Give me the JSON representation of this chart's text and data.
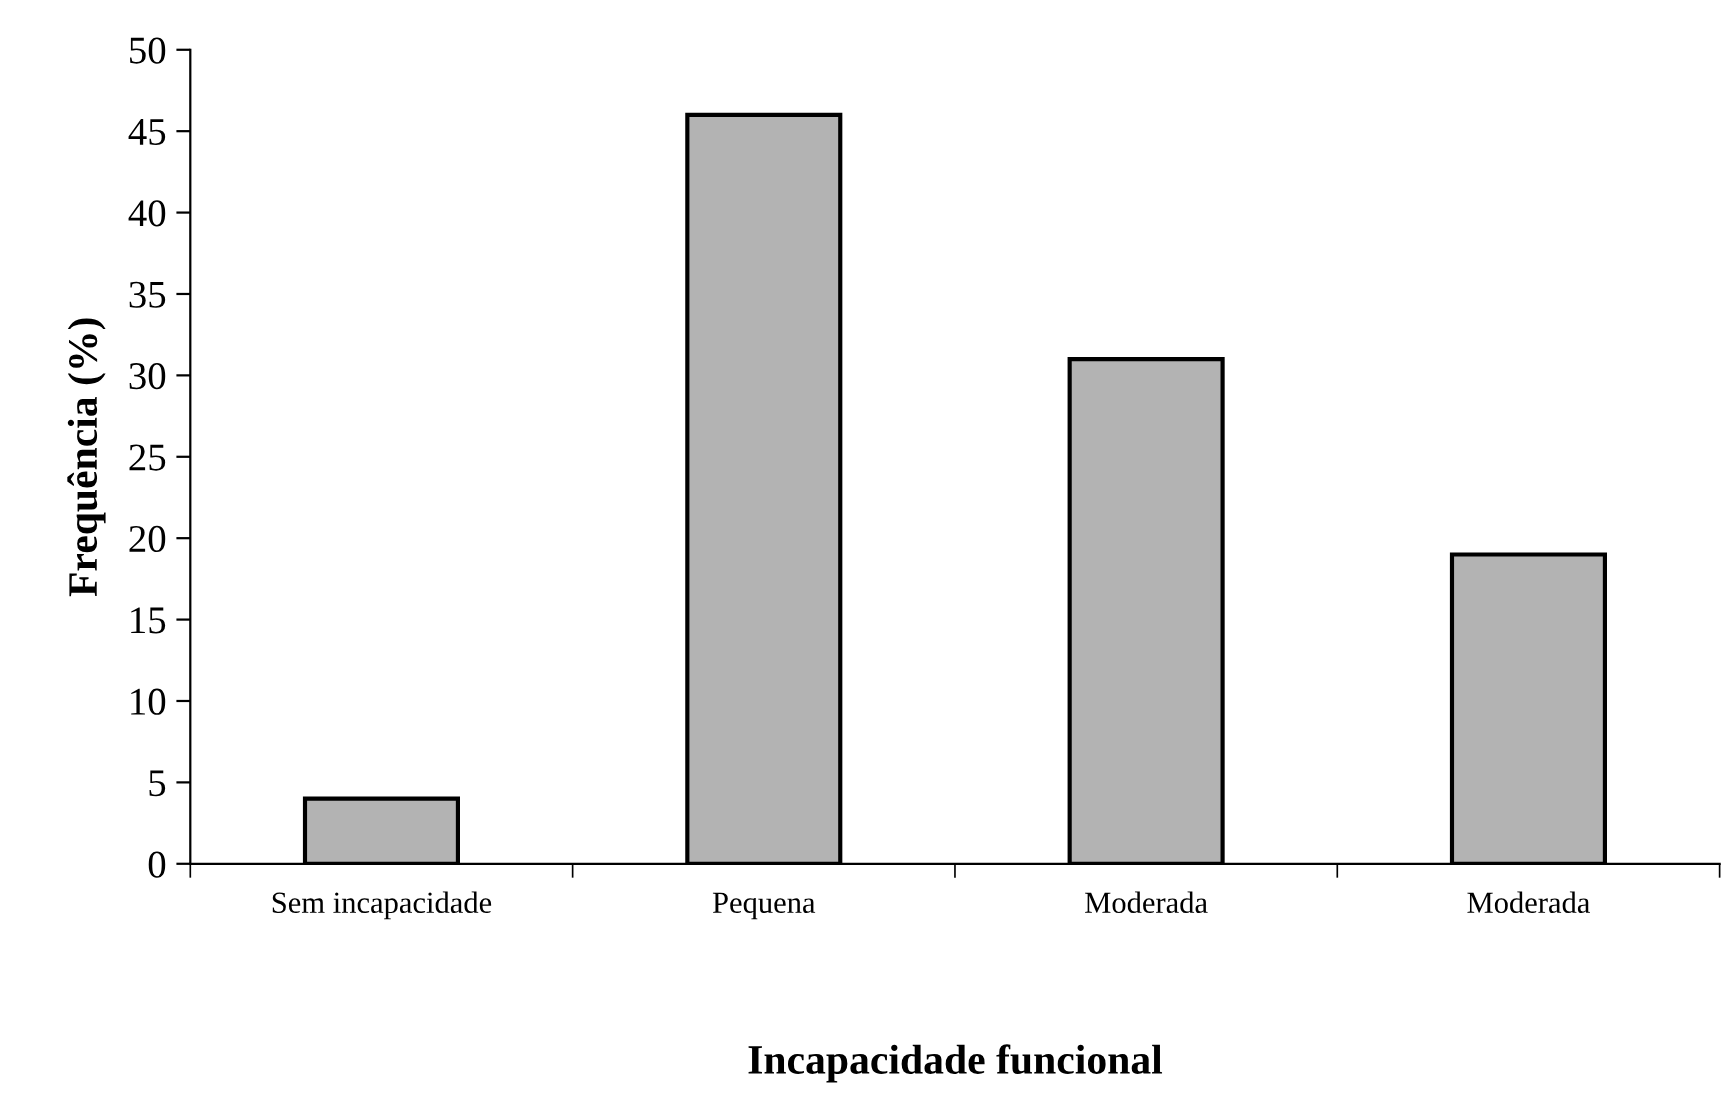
{
  "chart_data": {
    "type": "bar",
    "xlabel": "Incapacidade funcional",
    "ylabel": "Frequência (%)",
    "categories": [
      "Sem incapacidade",
      "Pequena",
      "Moderada",
      "Moderada"
    ],
    "values": [
      4,
      46,
      31,
      19
    ],
    "color": "#b3b3b3",
    "ylim": [
      0,
      50
    ],
    "yticks": [
      0,
      5,
      10,
      15,
      20,
      25,
      30,
      35,
      40,
      45,
      50
    ],
    "grid": false,
    "legend": false
  }
}
